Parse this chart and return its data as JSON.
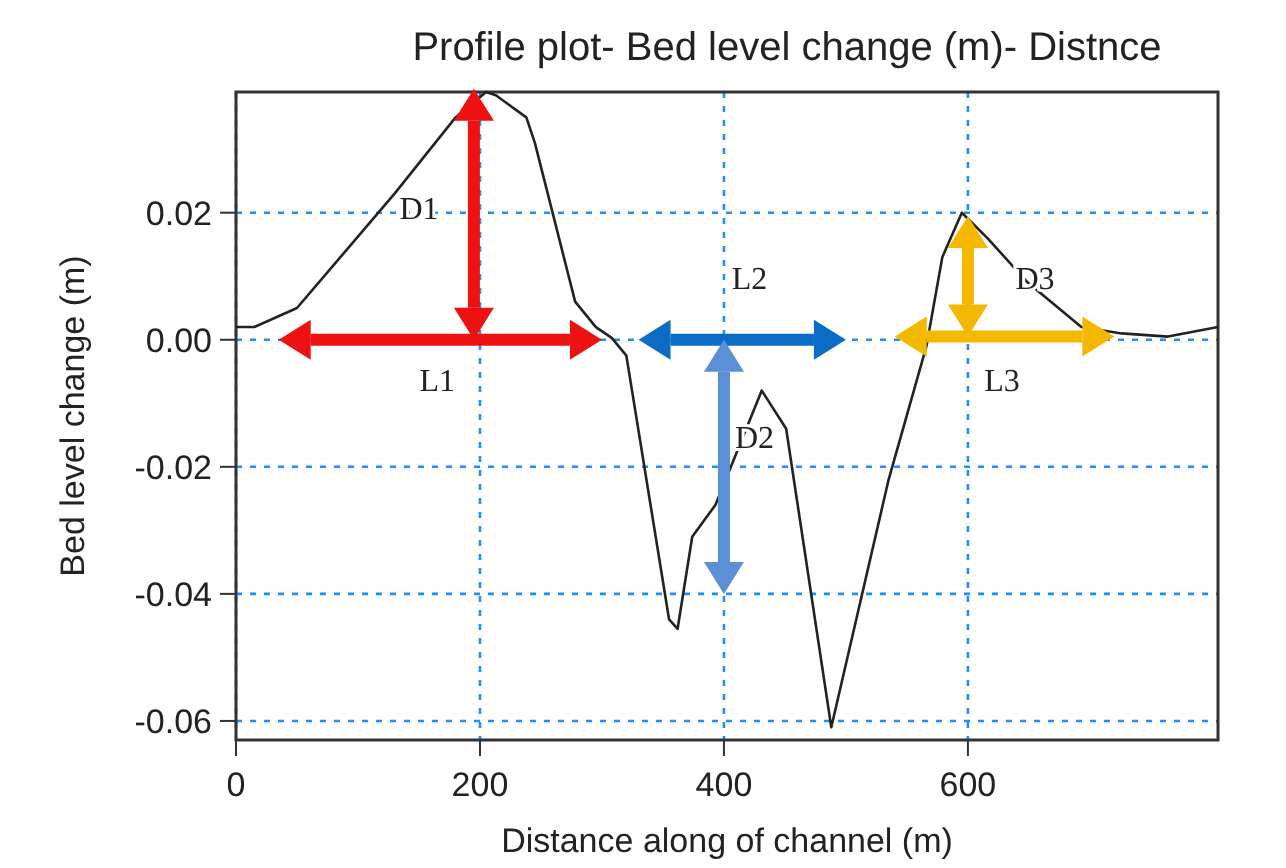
{
  "chart_data": {
    "type": "line",
    "title": "Profile plot- Bed level change (m)- Distnce",
    "xlabel": "Distance along of channel (m)",
    "ylabel": "Bed level change (m)",
    "x": [
      0,
      15,
      50,
      130,
      180,
      205,
      213,
      238,
      245,
      278,
      295,
      308,
      320,
      355,
      362,
      374,
      393,
      431,
      451,
      488,
      535,
      566,
      579,
      595,
      616,
      649,
      693,
      726,
      764,
      805
    ],
    "series": [
      {
        "color": "#222222",
        "values": [
          0.002,
          0.002,
          0.005,
          0.023,
          0.035,
          0.039,
          0.0385,
          0.035,
          0.031,
          0.006,
          0.002,
          0.0003,
          -0.0025,
          -0.044,
          -0.0455,
          -0.031,
          -0.026,
          -0.008,
          -0.014,
          -0.061,
          -0.022,
          -0.001,
          0.013,
          0.02,
          0.016,
          0.009,
          0.002,
          0.001,
          0.0005,
          0.002
        ]
      }
    ],
    "xlim": [
      0,
      805
    ],
    "ylim": [
      -0.063,
      0.039
    ],
    "xticks": [
      0,
      200,
      400,
      600
    ],
    "yticks": [
      {
        "value": -0.06,
        "label": "-0.06"
      },
      {
        "value": -0.04,
        "label": "-0.04"
      },
      {
        "value": -0.02,
        "label": "-0.02"
      },
      {
        "value": 0,
        "label": "0.00"
      },
      {
        "value": 0.02,
        "label": "0.02"
      }
    ],
    "grid": true,
    "line_style": "solid",
    "annotations": [
      "D1",
      "L1",
      "L2",
      "D2",
      "D3",
      "L3"
    ]
  }
}
